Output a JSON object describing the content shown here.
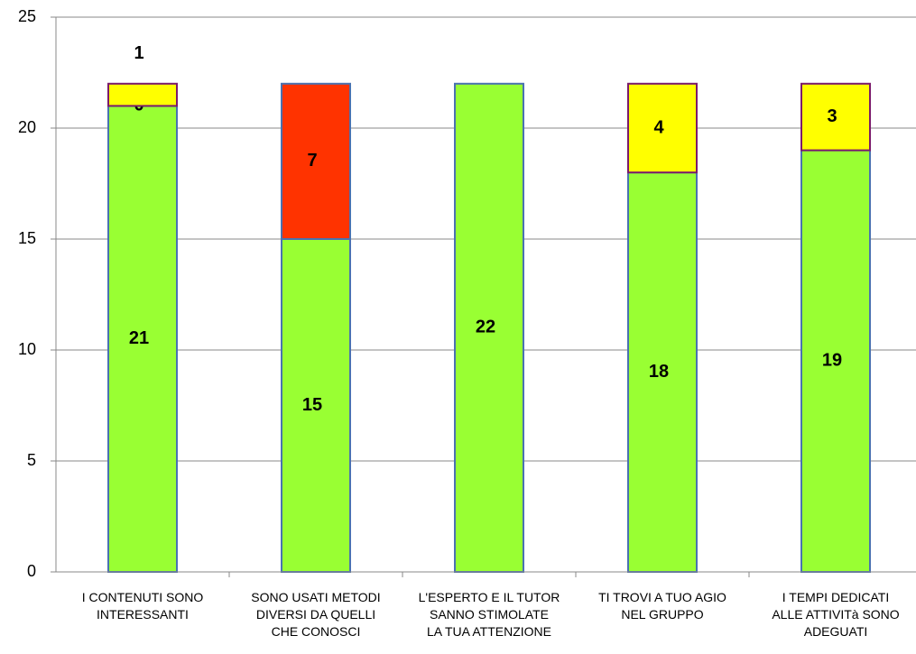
{
  "chart_data": {
    "type": "stacked_bar",
    "categories": [
      "I CONTENUTI SONO\nINTERESSANTI",
      "SONO USATI METODI\nDIVERSI DA QUELLI\nCHE CONOSCI",
      "L'ESPERTO E IL TUTOR\nSANNO STIMOLATE\nLA TUA ATTENZIONE",
      "TI TROVI A TUO AGIO\nNEL GRUPPO",
      "I TEMPI DEDICATI\nALLE ATTIVITà SONO\nADEGUATI"
    ],
    "series": [
      {
        "color": "#99ff33",
        "edge": "#4a72b0",
        "values": [
          21,
          15,
          22,
          18,
          19
        ]
      },
      {
        "color": "#ff3300",
        "edge": "#4a72b0",
        "values": [
          0,
          7,
          null,
          null,
          null
        ]
      },
      {
        "color": "#ffff00",
        "edge": "#7b1a6b",
        "values": [
          1,
          null,
          null,
          4,
          3
        ]
      }
    ],
    "ylim": [
      0,
      25
    ],
    "yticks": [
      0,
      5,
      10,
      15,
      20,
      25
    ],
    "grid": true
  }
}
